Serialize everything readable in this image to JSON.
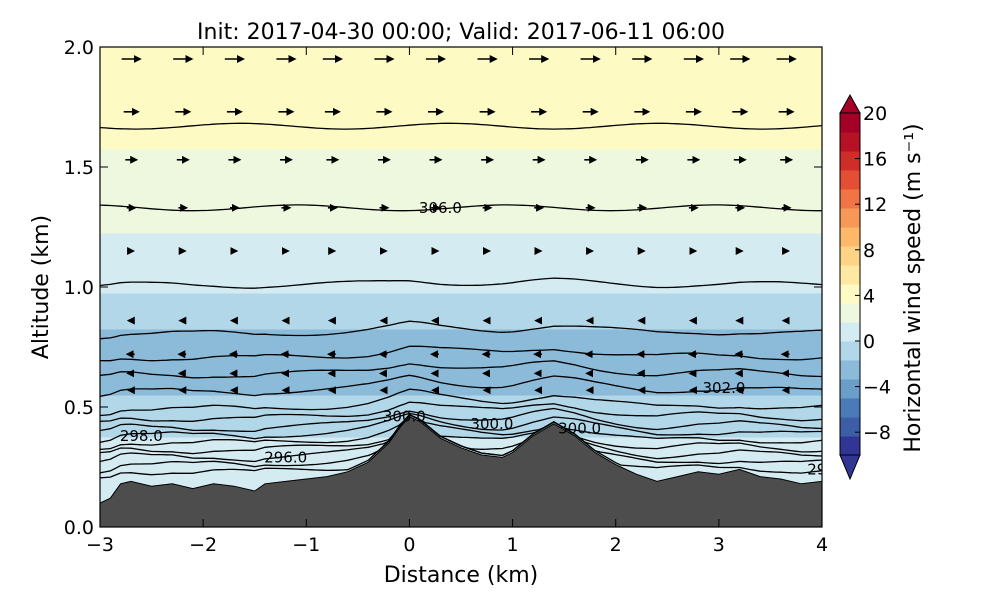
{
  "chart_data": {
    "type": "filled-contour cross-section",
    "title": "Init: 2017-04-30 00:00; Valid: 2017-06-11 06:00",
    "xlabel": "Distance (km)",
    "ylabel": "Altitude (km)",
    "xlim": [
      -3,
      4
    ],
    "ylim": [
      0.0,
      2.0
    ],
    "xticks": [
      -3,
      -2,
      -1,
      0,
      1,
      2,
      3,
      4
    ],
    "xtick_labels": [
      "−3",
      "−2",
      "−1",
      "0",
      "1",
      "2",
      "3",
      "4"
    ],
    "yticks": [
      0.0,
      0.5,
      1.0,
      1.5,
      2.0
    ],
    "ytick_labels": [
      "0.0",
      "0.5",
      "1.0",
      "1.5",
      "2.0"
    ],
    "colorbar": {
      "label": "Horizontal wind speed (m s⁻¹)",
      "range": [
        -10,
        20
      ],
      "ticks": [
        20,
        16,
        12,
        8,
        4,
        0,
        -4,
        -8
      ],
      "tick_labels": [
        "20",
        "16",
        "12",
        "8",
        "4",
        "0",
        "−4",
        "−8"
      ],
      "colors": [
        "#313695",
        "#3d5ea7",
        "#4a7ab8",
        "#6a9dc8",
        "#8cbad9",
        "#b2d7e8",
        "#d4ebf1",
        "#edf8df",
        "#fefac4",
        "#fee8a2",
        "#fdd385",
        "#fdb86a",
        "#f89858",
        "#f07446",
        "#e34e34",
        "#cf2d27",
        "#b51226",
        "#a50026"
      ]
    },
    "terrain": {
      "x": [
        -3.0,
        -2.9,
        -2.8,
        -2.7,
        -2.5,
        -2.3,
        -2.1,
        -1.9,
        -1.7,
        -1.5,
        -1.4,
        -1.2,
        -1.0,
        -0.8,
        -0.6,
        -0.4,
        -0.2,
        -0.1,
        0.0,
        0.1,
        0.3,
        0.5,
        0.7,
        0.9,
        1.0,
        1.2,
        1.4,
        1.6,
        1.8,
        2.0,
        2.2,
        2.4,
        2.6,
        2.8,
        3.0,
        3.2,
        3.4,
        3.6,
        3.8,
        4.0
      ],
      "y": [
        0.1,
        0.12,
        0.18,
        0.19,
        0.17,
        0.18,
        0.16,
        0.18,
        0.17,
        0.15,
        0.18,
        0.19,
        0.2,
        0.21,
        0.23,
        0.27,
        0.35,
        0.41,
        0.46,
        0.44,
        0.37,
        0.33,
        0.3,
        0.29,
        0.31,
        0.38,
        0.43,
        0.38,
        0.31,
        0.26,
        0.22,
        0.19,
        0.21,
        0.23,
        0.22,
        0.24,
        0.21,
        0.2,
        0.18,
        0.19
      ],
      "color": "#4d4d4d"
    },
    "wind_speed_profile": {
      "altitude": [
        0.0,
        0.3,
        0.5,
        0.62,
        0.72,
        0.85,
        1.0,
        1.2,
        1.4,
        1.6,
        1.8,
        2.0
      ],
      "speed": [
        0.5,
        0.5,
        -1.0,
        -2.5,
        -3.0,
        -1.5,
        0.5,
        1.5,
        2.5,
        3.5,
        4.3,
        5.0
      ]
    },
    "theta_contours": {
      "levels_altitude": [
        0.24,
        0.27,
        0.3,
        0.33,
        0.36,
        0.39,
        0.42,
        0.46,
        0.5,
        0.57,
        0.64,
        0.71,
        0.81,
        1.01,
        1.33,
        1.67
      ],
      "labels": [
        {
          "text": "298.0",
          "x": -2.6,
          "y": 0.38
        },
        {
          "text": "296.0",
          "x": -1.2,
          "y": 0.29
        },
        {
          "text": "300.0",
          "x": -0.05,
          "y": 0.46
        },
        {
          "text": "300.0",
          "x": 0.8,
          "y": 0.43
        },
        {
          "text": "300.0",
          "x": 1.65,
          "y": 0.41
        },
        {
          "text": "302.0",
          "x": 3.05,
          "y": 0.58
        },
        {
          "text": "306.0",
          "x": 0.3,
          "y": 1.33
        },
        {
          "text": "29",
          "x": 3.95,
          "y": 0.24
        }
      ]
    },
    "wind_vectors": {
      "x_columns": [
        -2.7,
        -2.2,
        -1.7,
        -1.2,
        -0.75,
        -0.25,
        0.25,
        0.75,
        1.25,
        1.75,
        2.25,
        2.75,
        3.2,
        3.65
      ],
      "altitude_rows": [
        1.95,
        1.73,
        1.53,
        1.33,
        1.15,
        0.86,
        0.72,
        0.64,
        0.57
      ],
      "arrow_lengths_by_row": [
        0.18,
        0.14,
        0.11,
        0.08,
        0.05,
        -0.05,
        -0.07,
        -0.06,
        -0.05
      ]
    }
  }
}
